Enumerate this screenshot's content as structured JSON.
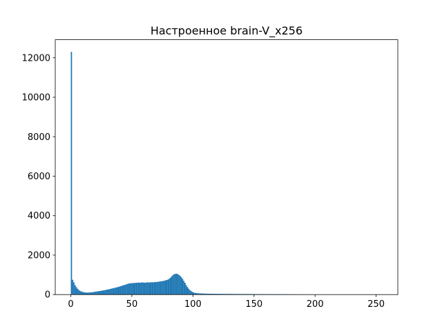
{
  "chart_data": {
    "type": "histogram",
    "title": "Настроенное brain-V_x256",
    "color": "#1f77b4",
    "bins": [
      0,
      1,
      2,
      3,
      4,
      5,
      6,
      7,
      8,
      9,
      10,
      11,
      12,
      13,
      14,
      15,
      16,
      17,
      18,
      19,
      20,
      21,
      22,
      23,
      24,
      25,
      26,
      27,
      28,
      29,
      30,
      31,
      32,
      33,
      34,
      35,
      36,
      37,
      38,
      39,
      40,
      41,
      42,
      43,
      44,
      45,
      46,
      47,
      48,
      49,
      50,
      51,
      52,
      53,
      54,
      55,
      56,
      57,
      58,
      59,
      60,
      61,
      62,
      63,
      64,
      65,
      66,
      67,
      68,
      69,
      70,
      71,
      72,
      73,
      74,
      75,
      76,
      77,
      78,
      79,
      80,
      81,
      82,
      83,
      84,
      85,
      86,
      87,
      88,
      89,
      90,
      91,
      92,
      93,
      94,
      95,
      96,
      97,
      98,
      99,
      100,
      101,
      102,
      103,
      104,
      105,
      106,
      107,
      108,
      109,
      110,
      111,
      112,
      113,
      114,
      115,
      116,
      117,
      118,
      119,
      120,
      121,
      122,
      123,
      124,
      125,
      126,
      127,
      128,
      129,
      130,
      131,
      132,
      133,
      134,
      135,
      136,
      137,
      138,
      139,
      140,
      141,
      142,
      143,
      144,
      145,
      146,
      147,
      148,
      149,
      150,
      151,
      152,
      153,
      154,
      155,
      156,
      157,
      158,
      159,
      160,
      161,
      162,
      163,
      164,
      165,
      166,
      167,
      168,
      169,
      170,
      171,
      172,
      173,
      174,
      175,
      176,
      177,
      178,
      179,
      180,
      181,
      182,
      183,
      184,
      185,
      186,
      187,
      188,
      189,
      190,
      191,
      192,
      193,
      194,
      195,
      196,
      197,
      198,
      199,
      200,
      201,
      202,
      203,
      204,
      205,
      206,
      207,
      208,
      209,
      210,
      211,
      212,
      213,
      214,
      215,
      216,
      217,
      218,
      219,
      220,
      221,
      222,
      223,
      224,
      225,
      226,
      227,
      228,
      229,
      230,
      231,
      232,
      233,
      234,
      235,
      236,
      237,
      238,
      239,
      240,
      241,
      242,
      243,
      244,
      245,
      246,
      247,
      248,
      249,
      250,
      251,
      252,
      253,
      254,
      255,
      256
    ],
    "values": [
      12300,
      750,
      620,
      480,
      380,
      300,
      240,
      190,
      160,
      140,
      120,
      110,
      105,
      100,
      105,
      110,
      115,
      120,
      130,
      140,
      150,
      160,
      170,
      180,
      190,
      200,
      210,
      220,
      235,
      250,
      260,
      275,
      290,
      305,
      320,
      335,
      350,
      365,
      380,
      400,
      420,
      440,
      460,
      480,
      500,
      520,
      540,
      560,
      570,
      580,
      580,
      590,
      590,
      600,
      600,
      610,
      600,
      610,
      620,
      610,
      600,
      610,
      620,
      620,
      610,
      620,
      630,
      620,
      630,
      640,
      640,
      650,
      660,
      670,
      680,
      690,
      700,
      720,
      740,
      760,
      800,
      850,
      920,
      980,
      1030,
      1050,
      1060,
      1040,
      1000,
      950,
      880,
      800,
      700,
      600,
      480,
      380,
      300,
      230,
      180,
      140,
      110,
      90,
      80,
      70,
      65,
      60,
      58,
      55,
      52,
      50,
      48,
      46,
      45,
      44,
      43,
      42,
      41,
      40,
      40,
      39,
      38,
      38,
      37,
      36,
      36,
      35,
      35,
      34,
      34,
      33,
      33,
      32,
      32,
      31,
      31,
      30,
      30,
      30,
      29,
      29,
      28,
      28,
      28,
      27,
      27,
      26,
      26,
      26,
      25,
      25,
      25,
      24,
      24,
      23,
      23,
      23,
      22,
      22,
      21,
      21,
      21,
      20,
      20,
      20,
      19,
      19,
      18,
      18,
      18,
      17,
      17,
      16,
      16,
      16,
      15,
      15,
      15,
      14,
      14,
      13,
      13,
      13,
      12,
      12,
      12,
      11,
      11,
      11,
      10,
      10,
      10,
      10,
      9,
      9,
      9,
      9,
      8,
      8,
      8,
      8,
      8,
      7,
      7,
      7,
      7,
      6,
      6,
      6,
      6,
      5,
      5,
      5,
      4,
      4,
      3,
      0,
      0,
      0,
      0,
      0,
      0,
      0,
      0,
      0,
      0,
      0,
      0,
      0,
      0,
      0,
      0,
      0,
      0,
      0,
      0,
      0,
      0,
      0,
      0,
      0,
      0,
      0,
      0,
      0,
      0,
      0,
      0,
      0,
      0,
      0,
      0,
      0,
      0,
      0,
      0,
      0
    ],
    "xlim": [
      -12.75,
      267.75
    ],
    "xticks": [
      0,
      50,
      100,
      150,
      200,
      250
    ],
    "ylim": [
      0,
      12915
    ],
    "yticks": [
      0,
      2000,
      4000,
      6000,
      8000,
      10000,
      12000
    ]
  }
}
